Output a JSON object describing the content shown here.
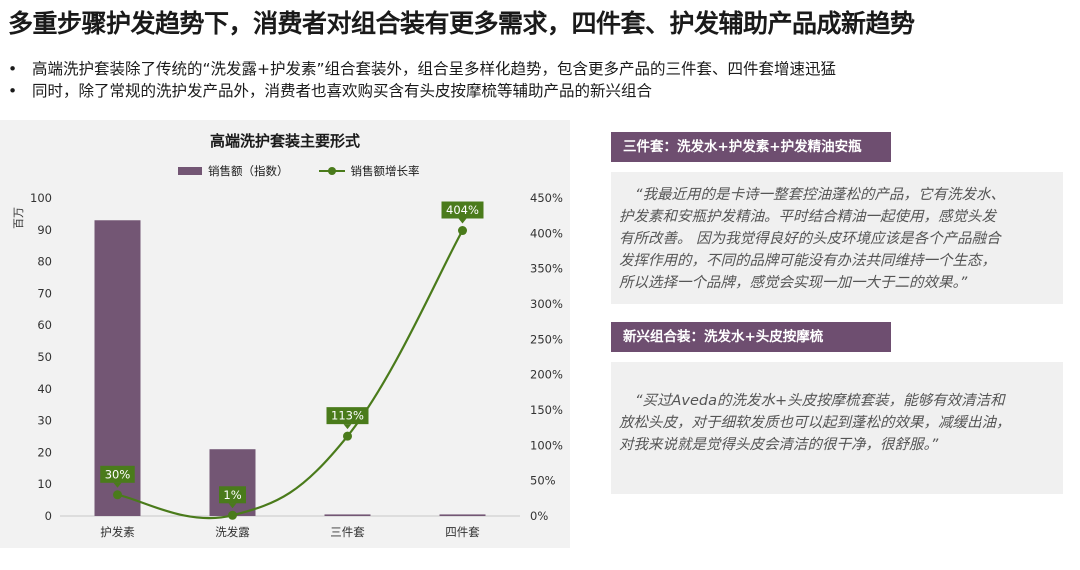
{
  "page": {
    "title": "多重步骤护发趋势下，消费者对组合装有更多需求，四件套、护发辅助产品成新趋势",
    "bullets": [
      "高端洗护套装除了传统的“洗发露+护发素”组合套装外，组合呈多样化趋势，包含更多产品的三件套、四件套增速迅猛",
      "同时，除了常规的洗护发产品外，消费者也喜欢购买含有头皮按摩梳等辅助产品的新兴组合"
    ],
    "bullet_symbol": "•"
  },
  "chart_data": {
    "type": "bar",
    "title": "高端洗护套装主要形式",
    "categories": [
      "护发素",
      "洗发露",
      "三件套",
      "四件套"
    ],
    "ylabel": "百万",
    "ylim": [
      0,
      100
    ],
    "yticks": [
      0,
      10,
      20,
      30,
      40,
      50,
      60,
      70,
      80,
      90,
      100
    ],
    "y2lim": [
      0,
      450
    ],
    "y2ticks": [
      "0%",
      "50%",
      "100%",
      "150%",
      "200%",
      "250%",
      "300%",
      "350%",
      "400%",
      "450%"
    ],
    "legend_position": "top",
    "series": [
      {
        "name": "销售额（指数）",
        "type": "bar",
        "color": "#735674",
        "values": [
          93,
          21,
          0.5,
          0.5
        ]
      },
      {
        "name": "销售额增长率",
        "type": "line",
        "color": "#4a7b1b",
        "axis": "right",
        "values": [
          30,
          1,
          113,
          404
        ],
        "data_labels": [
          "30%",
          "1%",
          "113%",
          "404%"
        ]
      }
    ]
  },
  "quotes": [
    {
      "header": "三件套：洗发水+护发素+护发精油安瓶",
      "lines": [
        "“我最近用的是卡诗一整套控油蓬松的产品，它有洗发水、",
        "护发素和安瓶护发精油。平时结合精油一起使用，感觉头发",
        "有所改善。 因为我觉得良好的头皮环境应该是各个产品融合",
        "发挥作用的，不同的品牌可能没有办法共同维持一个生态，",
        "所以选择一个品牌，感觉会实现一加一大于二的效果。”"
      ]
    },
    {
      "header": "新兴组合装：洗发水+头皮按摩梳",
      "lines": [
        "“买过Aveda的洗发水+头皮按摩梳套装，能够有效清洁和",
        "放松头皮，对于细软发质也可以起到蓬松的效果，减缓出油，",
        "对我来说就是觉得头皮会清洁的很干净，很舒服。”"
      ]
    }
  ]
}
